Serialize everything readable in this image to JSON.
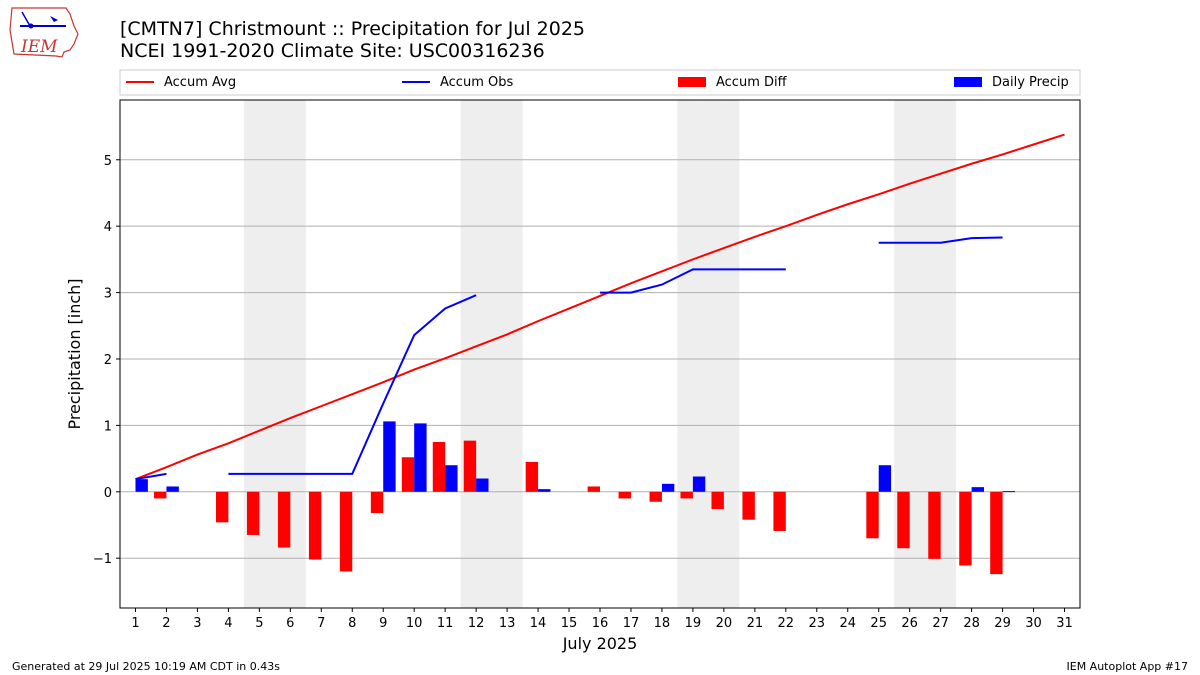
{
  "header": {
    "logo_text": "IEM",
    "title_line1": "[CMTN7] Christmount :: Precipitation for Jul 2025",
    "title_line2": "NCEI 1991-2020 Climate Site: USC00316236"
  },
  "footer": {
    "generated": "Generated at 29 Jul 2025 10:19 AM CDT in 0.43s",
    "app": "IEM Autoplot App #17"
  },
  "colors": {
    "accum_avg": "#ff0000",
    "accum_obs": "#0000ff",
    "accum_diff": "#ff0000",
    "daily_precip": "#0000ff",
    "weekend_band": "#eeeeee",
    "grid": "#b0b0b0"
  },
  "chart_data": {
    "type": "bar",
    "xlabel": "July 2025",
    "ylabel": "Precipitation [inch]",
    "ylim": [
      -1.75,
      5.9
    ],
    "xlim": [
      0.5,
      31.5
    ],
    "yticks": [
      -1,
      0,
      1,
      2,
      3,
      4,
      5
    ],
    "ytick_labels": [
      "−1",
      "0",
      "1",
      "2",
      "3",
      "4",
      "5"
    ],
    "days": [
      1,
      2,
      3,
      4,
      5,
      6,
      7,
      8,
      9,
      10,
      11,
      12,
      13,
      14,
      15,
      16,
      17,
      18,
      19,
      20,
      21,
      22,
      23,
      24,
      25,
      26,
      27,
      28,
      29,
      30,
      31
    ],
    "grid": "y",
    "legend_placement": "top, above plot",
    "shaded_weekends": [
      [
        4.5,
        6.5
      ],
      [
        11.5,
        13.5
      ],
      [
        18.5,
        20.5
      ],
      [
        25.5,
        27.5
      ]
    ],
    "legend": [
      {
        "label": "Accum Avg",
        "kind": "line",
        "color": "#ff0000"
      },
      {
        "label": "Accum Obs",
        "kind": "line",
        "color": "#0000ff"
      },
      {
        "label": "Accum Diff",
        "kind": "bar",
        "color": "#ff0000"
      },
      {
        "label": "Daily Precip",
        "kind": "bar",
        "color": "#0000ff"
      }
    ],
    "series": [
      {
        "name": "Accum Avg",
        "kind": "line",
        "x": [
          1,
          2,
          3,
          4,
          5,
          6,
          7,
          8,
          9,
          10,
          11,
          12,
          13,
          14,
          15,
          16,
          17,
          18,
          19,
          20,
          21,
          22,
          23,
          24,
          25,
          26,
          27,
          28,
          29,
          30,
          31
        ],
        "values": [
          0.19,
          0.37,
          0.56,
          0.73,
          0.92,
          1.11,
          1.29,
          1.47,
          1.65,
          1.84,
          2.01,
          2.19,
          2.37,
          2.57,
          2.76,
          2.95,
          3.14,
          3.32,
          3.5,
          3.67,
          3.84,
          4.0,
          4.17,
          4.33,
          4.48,
          4.64,
          4.79,
          4.94,
          5.08,
          5.23,
          5.38
        ]
      },
      {
        "name": "Accum Obs",
        "kind": "line",
        "segments": [
          {
            "x": [
              1,
              2
            ],
            "values": [
              0.19,
              0.27
            ]
          },
          {
            "x": [
              4,
              5,
              6,
              7,
              8,
              9,
              10,
              11,
              12
            ],
            "values": [
              0.27,
              0.27,
              0.27,
              0.27,
              0.27,
              1.33,
              2.36,
              2.76,
              2.96
            ]
          },
          {
            "x": [
              16,
              17,
              18,
              19,
              20,
              21,
              22
            ],
            "values": [
              3.0,
              3.0,
              3.12,
              3.35,
              3.35,
              3.35,
              3.35
            ]
          },
          {
            "x": [
              25,
              26,
              27,
              28,
              29
            ],
            "values": [
              3.75,
              3.75,
              3.75,
              3.82,
              3.83
            ]
          }
        ]
      },
      {
        "name": "Accum Diff",
        "kind": "bar",
        "x": [
          1,
          2,
          4,
          5,
          6,
          7,
          8,
          9,
          10,
          11,
          12,
          14,
          16,
          17,
          18,
          19,
          20,
          21,
          22,
          25,
          26,
          27,
          28,
          29
        ],
        "values": [
          0.0,
          -0.1,
          -0.46,
          -0.65,
          -0.84,
          -1.02,
          -1.2,
          -0.32,
          0.52,
          0.75,
          0.77,
          0.45,
          0.08,
          -0.1,
          -0.15,
          -0.1,
          -0.26,
          -0.42,
          -0.59,
          -0.7,
          -0.85,
          -1.01,
          -1.11,
          -1.24
        ]
      },
      {
        "name": "Daily Precip",
        "kind": "bar",
        "x": [
          1,
          2,
          9,
          10,
          11,
          12,
          14,
          18,
          19,
          25,
          28,
          29
        ],
        "values": [
          0.19,
          0.08,
          1.06,
          1.03,
          0.4,
          0.2,
          0.04,
          0.12,
          0.23,
          0.4,
          0.07,
          0.01
        ]
      }
    ]
  }
}
